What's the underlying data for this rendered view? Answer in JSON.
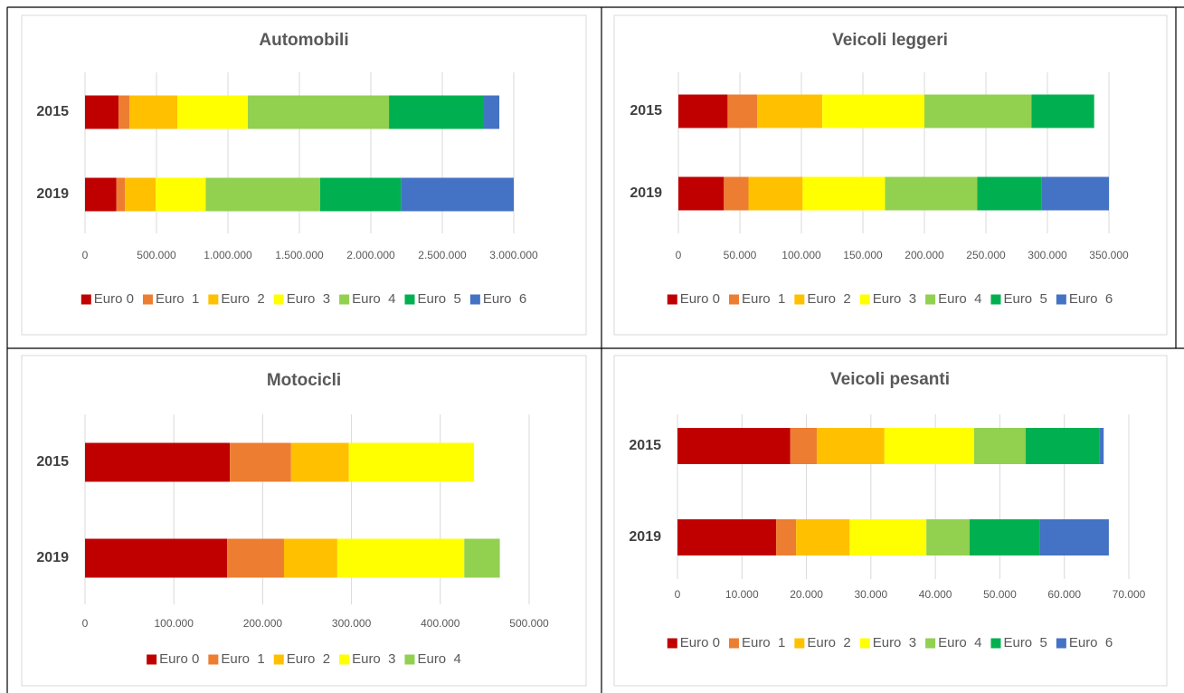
{
  "chart_data": [
    {
      "type": "bar",
      "orientation": "horizontal",
      "stacked": true,
      "title": "Automobili",
      "categories": [
        "2015",
        "2019"
      ],
      "series": [
        {
          "name": "Euro 0",
          "color": "#c00000",
          "values": [
            234000,
            220000
          ]
        },
        {
          "name": "Euro  1",
          "color": "#ed7d31",
          "values": [
            76000,
            60000
          ]
        },
        {
          "name": "Euro  2",
          "color": "#ffc000",
          "values": [
            336000,
            215000
          ]
        },
        {
          "name": "Euro  3",
          "color": "#ffff00",
          "values": [
            493000,
            350000
          ]
        },
        {
          "name": "Euro  4",
          "color": "#92d050",
          "values": [
            988000,
            800000
          ]
        },
        {
          "name": "Euro  5",
          "color": "#00b050",
          "values": [
            658000,
            565000
          ]
        },
        {
          "name": "Euro  6",
          "color": "#4472c4",
          "values": [
            114000,
            790000
          ]
        }
      ],
      "xlim": [
        0,
        3000000
      ],
      "xticks": [
        0,
        {
          "value": 500000,
          "label": "500.000"
        },
        {
          "value": 1000000,
          "label": "1.000.000"
        },
        {
          "value": 1500000,
          "label": "1.500.000"
        },
        {
          "value": 2000000,
          "label": "2.000.000"
        },
        {
          "value": 2500000,
          "label": "2.500.000"
        },
        {
          "value": 3000000,
          "label": "3.000.000"
        }
      ],
      "grid": true,
      "legend": "bottom"
    },
    {
      "type": "bar",
      "orientation": "horizontal",
      "stacked": true,
      "title": "Veicoli leggeri",
      "categories": [
        "2015",
        "2019"
      ],
      "series": [
        {
          "name": "Euro 0",
          "color": "#c00000",
          "values": [
            40000,
            37000
          ]
        },
        {
          "name": "Euro  1",
          "color": "#ed7d31",
          "values": [
            24000,
            20000
          ]
        },
        {
          "name": "Euro  2",
          "color": "#ffc000",
          "values": [
            53000,
            44000
          ]
        },
        {
          "name": "Euro  3",
          "color": "#ffff00",
          "values": [
            83000,
            67000
          ]
        },
        {
          "name": "Euro  4",
          "color": "#92d050",
          "values": [
            87000,
            75000
          ]
        },
        {
          "name": "Euro  5",
          "color": "#00b050",
          "values": [
            51000,
            52000
          ]
        },
        {
          "name": "Euro  6",
          "color": "#4472c4",
          "values": [
            0,
            55000
          ]
        }
      ],
      "xlim": [
        0,
        350000
      ],
      "xticks": [
        0,
        {
          "value": 50000,
          "label": "50.000"
        },
        {
          "value": 100000,
          "label": "100.000"
        },
        {
          "value": 150000,
          "label": "150.000"
        },
        {
          "value": 200000,
          "label": "200.000"
        },
        {
          "value": 250000,
          "label": "250.000"
        },
        {
          "value": 300000,
          "label": "300.000"
        },
        {
          "value": 350000,
          "label": "350.000"
        }
      ],
      "grid": true,
      "legend": "bottom"
    },
    {
      "type": "bar",
      "orientation": "horizontal",
      "stacked": true,
      "title": "Motocicli",
      "categories": [
        "2015",
        "2019"
      ],
      "series": [
        {
          "name": "Euro 0",
          "color": "#c00000",
          "values": [
            163000,
            160000
          ]
        },
        {
          "name": "Euro  1",
          "color": "#ed7d31",
          "values": [
            69000,
            64000
          ]
        },
        {
          "name": "Euro  2",
          "color": "#ffc000",
          "values": [
            65000,
            60000
          ]
        },
        {
          "name": "Euro  3",
          "color": "#ffff00",
          "values": [
            141000,
            143000
          ]
        },
        {
          "name": "Euro  4",
          "color": "#92d050",
          "values": [
            0,
            40000
          ]
        }
      ],
      "xlim": [
        0,
        500000
      ],
      "xticks": [
        0,
        {
          "value": 100000,
          "label": "100.000"
        },
        {
          "value": 200000,
          "label": "200.000"
        },
        {
          "value": 300000,
          "label": "300.000"
        },
        {
          "value": 400000,
          "label": "400.000"
        },
        {
          "value": 500000,
          "label": "500.000"
        }
      ],
      "grid": true,
      "legend": "bottom"
    },
    {
      "type": "bar",
      "orientation": "horizontal",
      "stacked": true,
      "title": "Veicoli pesanti",
      "categories": [
        "2015",
        "2019"
      ],
      "series": [
        {
          "name": "Euro 0",
          "color": "#c00000",
          "values": [
            17500,
            15300
          ]
        },
        {
          "name": "Euro  1",
          "color": "#ed7d31",
          "values": [
            4100,
            3100
          ]
        },
        {
          "name": "Euro  2",
          "color": "#ffc000",
          "values": [
            10500,
            8300
          ]
        },
        {
          "name": "Euro  3",
          "color": "#ffff00",
          "values": [
            13900,
            11900
          ]
        },
        {
          "name": "Euro  4",
          "color": "#92d050",
          "values": [
            8000,
            6700
          ]
        },
        {
          "name": "Euro  5",
          "color": "#00b050",
          "values": [
            11400,
            10900
          ]
        },
        {
          "name": "Euro  6",
          "color": "#4472c4",
          "values": [
            700,
            10700
          ]
        }
      ],
      "xlim": [
        0,
        70000
      ],
      "xticks": [
        0,
        {
          "value": 10000,
          "label": "10.000"
        },
        {
          "value": 20000,
          "label": "20.000"
        },
        {
          "value": 30000,
          "label": "30.000"
        },
        {
          "value": 40000,
          "label": "40.000"
        },
        {
          "value": 50000,
          "label": "50.000"
        },
        {
          "value": 60000,
          "label": "60.000"
        },
        {
          "value": 70000,
          "label": "70.000"
        }
      ],
      "grid": true,
      "legend": "bottom"
    }
  ]
}
